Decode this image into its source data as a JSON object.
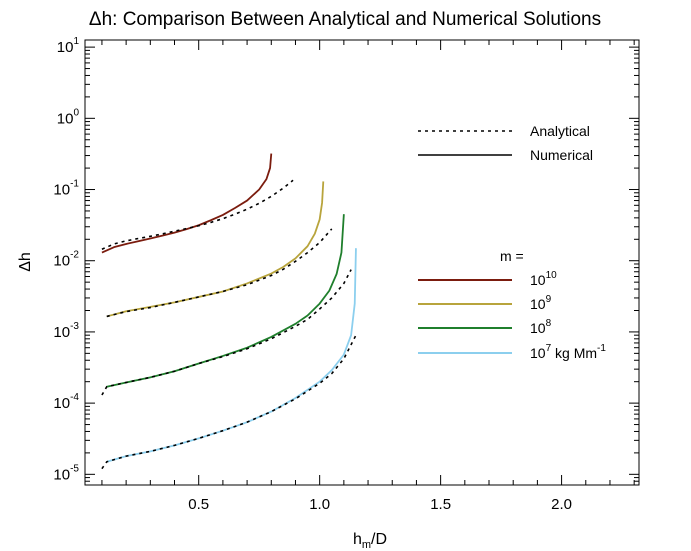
{
  "chart_data": {
    "type": "line",
    "title": "Δh: Comparison Between Analytical and Numerical Solutions",
    "xlabel": {
      "base": "h",
      "sub": "m",
      "rest": "/D"
    },
    "ylabel": "Δh",
    "xlim": [
      0.03,
      2.32
    ],
    "ylim_log10": [
      -5.15,
      1.1
    ],
    "y_scale": "log",
    "x_ticks": [
      {
        "value": 0.5,
        "label": "0.5"
      },
      {
        "value": 1.0,
        "label": "1.0"
      },
      {
        "value": 1.5,
        "label": "1.5"
      },
      {
        "value": 2.0,
        "label": "2.0"
      }
    ],
    "y_ticks": [
      {
        "value": 1,
        "exp": "1"
      },
      {
        "value": 0,
        "exp": "0"
      },
      {
        "value": -1,
        "exp": "-1"
      },
      {
        "value": -2,
        "exp": "-2"
      },
      {
        "value": -3,
        "exp": "-3"
      },
      {
        "value": -4,
        "exp": "-4"
      },
      {
        "value": -5,
        "exp": "-5"
      }
    ],
    "legend_style": {
      "entries": [
        {
          "label": "Analytical",
          "style": "dotted"
        },
        {
          "label": "Numerical",
          "style": "solid"
        }
      ],
      "placement": "top-right"
    },
    "legend_mass": {
      "title": "m =",
      "entries": [
        {
          "base": "10",
          "exp": "10",
          "suffix": "",
          "color": "#7b1c0e"
        },
        {
          "base": "10",
          "exp": "9",
          "suffix": "",
          "color": "#b8a43c"
        },
        {
          "base": "10",
          "exp": "8",
          "suffix": "",
          "color": "#1f7f2c"
        },
        {
          "base": "10",
          "exp": "7",
          "suffix": " kg Mm",
          "suffix_exp": "-1",
          "color": "#8ccfee"
        }
      ],
      "placement": "center-right"
    },
    "series": [
      {
        "name": "10^10",
        "color": "#7b1c0e",
        "numerical": {
          "x": [
            0.1,
            0.15,
            0.2,
            0.25,
            0.3,
            0.35,
            0.4,
            0.45,
            0.5,
            0.55,
            0.6,
            0.65,
            0.7,
            0.75,
            0.78,
            0.795,
            0.8
          ],
          "y": [
            0.013,
            0.0155,
            0.0172,
            0.0188,
            0.0205,
            0.0225,
            0.0248,
            0.0278,
            0.0315,
            0.037,
            0.044,
            0.055,
            0.07,
            0.1,
            0.14,
            0.2,
            0.32
          ]
        },
        "analytical": {
          "x": [
            0.1,
            0.15,
            0.2,
            0.25,
            0.3,
            0.35,
            0.4,
            0.45,
            0.5,
            0.55,
            0.6,
            0.65,
            0.7,
            0.75,
            0.8,
            0.85,
            0.89
          ],
          "y": [
            0.0145,
            0.0172,
            0.019,
            0.0205,
            0.022,
            0.0238,
            0.026,
            0.0283,
            0.031,
            0.0345,
            0.039,
            0.045,
            0.053,
            0.064,
            0.08,
            0.105,
            0.135
          ]
        }
      },
      {
        "name": "10^9",
        "color": "#b8a43c",
        "numerical": {
          "x": [
            0.12,
            0.2,
            0.3,
            0.4,
            0.5,
            0.6,
            0.7,
            0.8,
            0.85,
            0.9,
            0.95,
            0.98,
            1.0,
            1.01,
            1.015
          ],
          "y": [
            0.00165,
            0.00195,
            0.00225,
            0.0026,
            0.0031,
            0.0037,
            0.0048,
            0.0066,
            0.0082,
            0.0108,
            0.016,
            0.024,
            0.038,
            0.065,
            0.13
          ]
        },
        "analytical": {
          "x": [
            0.12,
            0.2,
            0.3,
            0.4,
            0.5,
            0.6,
            0.7,
            0.8,
            0.85,
            0.9,
            0.95,
            1.0,
            1.05
          ],
          "y": [
            0.00165,
            0.00193,
            0.0022,
            0.0026,
            0.0031,
            0.0037,
            0.0046,
            0.0062,
            0.0076,
            0.0098,
            0.013,
            0.018,
            0.028
          ]
        }
      },
      {
        "name": "10^8",
        "color": "#1f7f2c",
        "numerical": {
          "x": [
            0.12,
            0.2,
            0.3,
            0.4,
            0.5,
            0.6,
            0.7,
            0.8,
            0.9,
            0.95,
            1.0,
            1.04,
            1.07,
            1.09,
            1.1
          ],
          "y": [
            0.00017,
            0.000195,
            0.00023,
            0.00028,
            0.00036,
            0.00046,
            0.0006,
            0.00085,
            0.0013,
            0.0017,
            0.0025,
            0.0038,
            0.0065,
            0.013,
            0.045
          ]
        },
        "analytical": {
          "x": [
            0.1,
            0.12,
            0.2,
            0.3,
            0.4,
            0.5,
            0.6,
            0.7,
            0.8,
            0.9,
            0.95,
            1.0,
            1.05,
            1.1,
            1.13
          ],
          "y": [
            0.00013,
            0.00017,
            0.000195,
            0.00023,
            0.00028,
            0.00036,
            0.00045,
            0.00058,
            0.0008,
            0.0012,
            0.0015,
            0.0021,
            0.003,
            0.0048,
            0.0075
          ]
        }
      },
      {
        "name": "10^7 kg Mm^-1",
        "color": "#8ccfee",
        "numerical": {
          "x": [
            0.12,
            0.2,
            0.3,
            0.4,
            0.5,
            0.6,
            0.7,
            0.8,
            0.9,
            1.0,
            1.05,
            1.1,
            1.13,
            1.145,
            1.15
          ],
          "y": [
            1.5e-05,
            1.8e-05,
            2.1e-05,
            2.55e-05,
            3.2e-05,
            4.1e-05,
            5.4e-05,
            7.6e-05,
            0.000118,
            0.0002,
            0.00029,
            0.00048,
            0.0009,
            0.0025,
            0.015
          ]
        },
        "analytical": {
          "x": [
            0.1,
            0.12,
            0.2,
            0.3,
            0.4,
            0.5,
            0.6,
            0.7,
            0.8,
            0.9,
            1.0,
            1.05,
            1.1,
            1.15
          ],
          "y": [
            1.2e-05,
            1.5e-05,
            1.8e-05,
            2.1e-05,
            2.55e-05,
            3.2e-05,
            4.1e-05,
            5.4e-05,
            7.6e-05,
            0.000115,
            0.00019,
            0.00026,
            0.00042,
            0.0009
          ]
        }
      }
    ]
  }
}
